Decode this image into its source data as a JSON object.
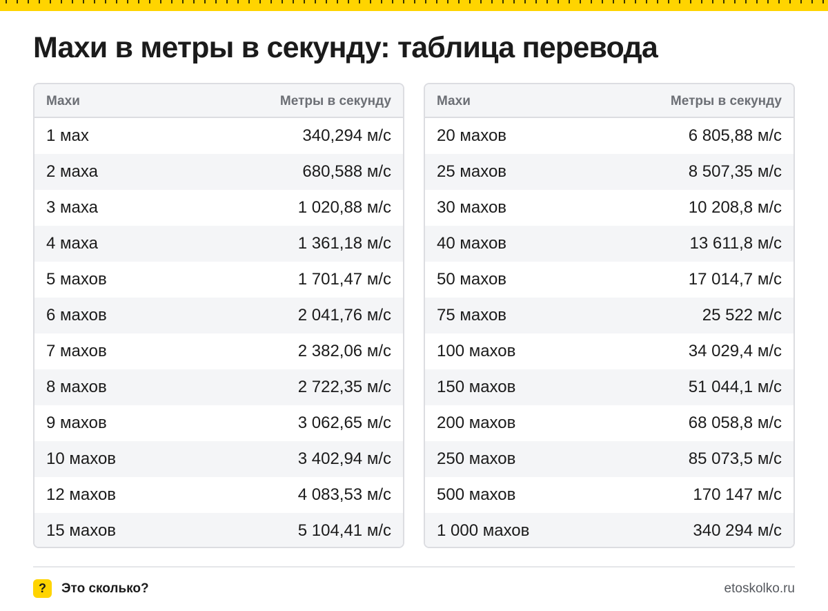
{
  "title": "Махи в метры в секунду: таблица перевода",
  "table_headers": {
    "from": "Махи",
    "to": "Метры в секунду"
  },
  "left_table": [
    {
      "mach": "1 мах",
      "ms": "340,294 м/с"
    },
    {
      "mach": "2 маха",
      "ms": "680,588 м/с"
    },
    {
      "mach": "3 маха",
      "ms": "1 020,88 м/с"
    },
    {
      "mach": "4 маха",
      "ms": "1 361,18 м/с"
    },
    {
      "mach": "5 махов",
      "ms": "1 701,47 м/с"
    },
    {
      "mach": "6 махов",
      "ms": "2 041,76 м/с"
    },
    {
      "mach": "7 махов",
      "ms": "2 382,06 м/с"
    },
    {
      "mach": "8 махов",
      "ms": "2 722,35 м/с"
    },
    {
      "mach": "9 махов",
      "ms": "3 062,65 м/с"
    },
    {
      "mach": "10 махов",
      "ms": "3 402,94 м/с"
    },
    {
      "mach": "12 махов",
      "ms": "4 083,53 м/с"
    },
    {
      "mach": "15 махов",
      "ms": "5 104,41 м/с"
    }
  ],
  "right_table": [
    {
      "mach": "20 махов",
      "ms": "6 805,88 м/с"
    },
    {
      "mach": "25 махов",
      "ms": "8 507,35 м/с"
    },
    {
      "mach": "30 махов",
      "ms": "10 208,8 м/с"
    },
    {
      "mach": "40 махов",
      "ms": "13 611,8 м/с"
    },
    {
      "mach": "50 махов",
      "ms": "17 014,7 м/с"
    },
    {
      "mach": "75 махов",
      "ms": "25 522 м/с"
    },
    {
      "mach": "100 махов",
      "ms": "34 029,4 м/с"
    },
    {
      "mach": "150 махов",
      "ms": "51 044,1 м/с"
    },
    {
      "mach": "200 махов",
      "ms": "68 058,8 м/с"
    },
    {
      "mach": "250 махов",
      "ms": "85 073,5 м/с"
    },
    {
      "mach": "500 махов",
      "ms": "170 147 м/с"
    },
    {
      "mach": "1 000 махов",
      "ms": "340 294 м/с"
    }
  ],
  "footer": {
    "badge": "?",
    "brand": "Это сколько?",
    "site": "etoskolko.ru"
  },
  "colors": {
    "accent": "#ffd400",
    "text": "#1b1b1b",
    "header_text": "#6c6f75",
    "stripe": "#f4f5f7",
    "border": "#dcdde1"
  }
}
